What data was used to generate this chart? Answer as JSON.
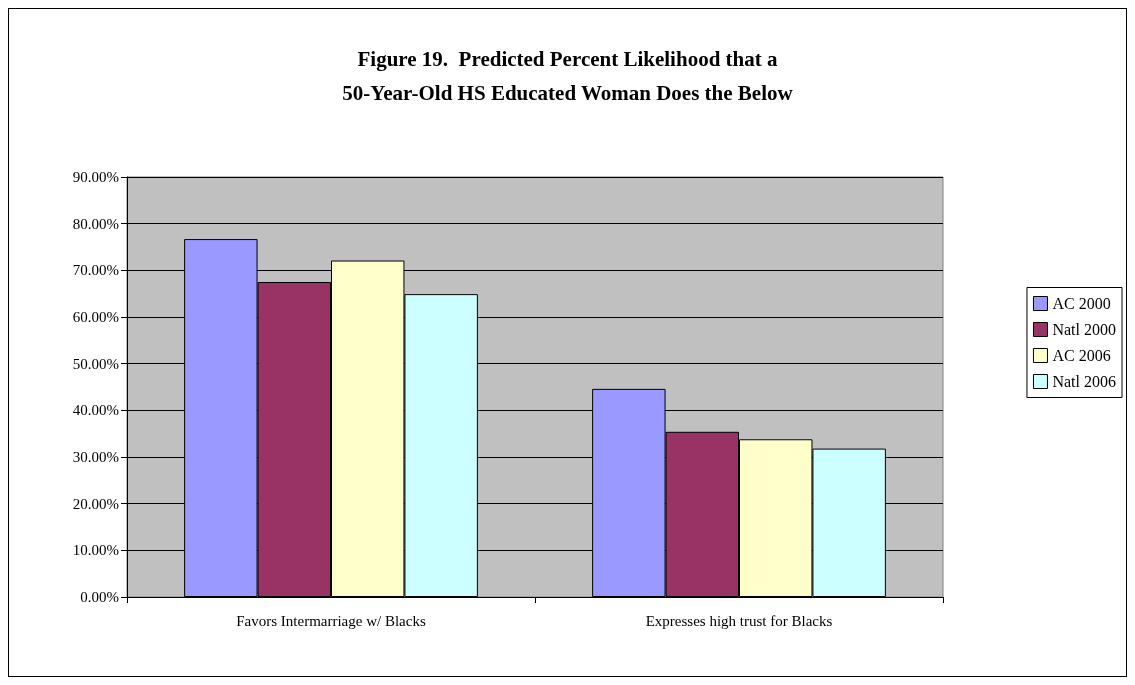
{
  "chart_data": {
    "type": "bar",
    "title": "Figure 19.  Predicted Percent Likelihood that a\n50-Year-Old HS Educated Woman Does the Below",
    "categories": [
      "Favors Intermarriage w/ Blacks",
      "Expresses high trust for Blacks"
    ],
    "series": [
      {
        "name": "AC 2000",
        "color": "#9999ff",
        "values": [
          76.7,
          44.6
        ]
      },
      {
        "name": "Natl 2000",
        "color": "#993366",
        "values": [
          67.5,
          35.4
        ]
      },
      {
        "name": "AC 2006",
        "color": "#ffffcc",
        "values": [
          72.1,
          33.8
        ]
      },
      {
        "name": "Natl 2006",
        "color": "#ccffff",
        "values": [
          64.9,
          31.8
        ]
      }
    ],
    "ylim": [
      0,
      90
    ],
    "yticks": [
      {
        "value": 0,
        "label": "0.00%"
      },
      {
        "value": 10,
        "label": "10.00%"
      },
      {
        "value": 20,
        "label": "20.00%"
      },
      {
        "value": 30,
        "label": "30.00%"
      },
      {
        "value": 40,
        "label": "40.00%"
      },
      {
        "value": 50,
        "label": "50.00%"
      },
      {
        "value": 60,
        "label": "60.00%"
      },
      {
        "value": 70,
        "label": "70.00%"
      },
      {
        "value": 80,
        "label": "80.00%"
      },
      {
        "value": 90,
        "label": "90.00%"
      }
    ],
    "grid": "y",
    "legend": "right"
  }
}
